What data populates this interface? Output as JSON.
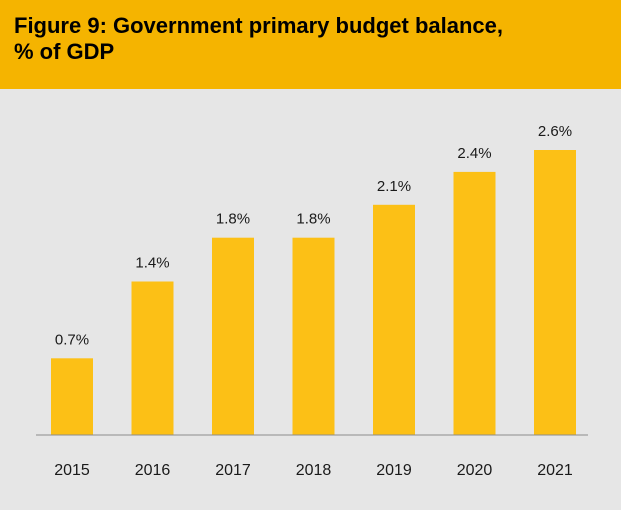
{
  "header": {
    "title_line1": "Figure 9: Government primary budget balance,",
    "title_line2": "% of GDP"
  },
  "colors": {
    "header_bg": "#f5b400",
    "plot_bg": "#e6e6e6",
    "bar": "#fcc016",
    "axis": "#8c8c8c",
    "text": "#1a1a1a"
  },
  "chart_data": {
    "type": "bar",
    "title": "Figure 9: Government primary budget balance, % of GDP",
    "categories": [
      "2015",
      "2016",
      "2017",
      "2018",
      "2019",
      "2020",
      "2021"
    ],
    "values": [
      0.7,
      1.4,
      1.8,
      1.8,
      2.1,
      2.4,
      2.6
    ],
    "data_labels": [
      "0.7%",
      "1.4%",
      "1.8%",
      "1.8%",
      "2.1%",
      "2.4%",
      "2.6%"
    ],
    "xlabel": "",
    "ylabel": "",
    "ylim": [
      0,
      2.6
    ],
    "grid": false,
    "legend": "none"
  }
}
